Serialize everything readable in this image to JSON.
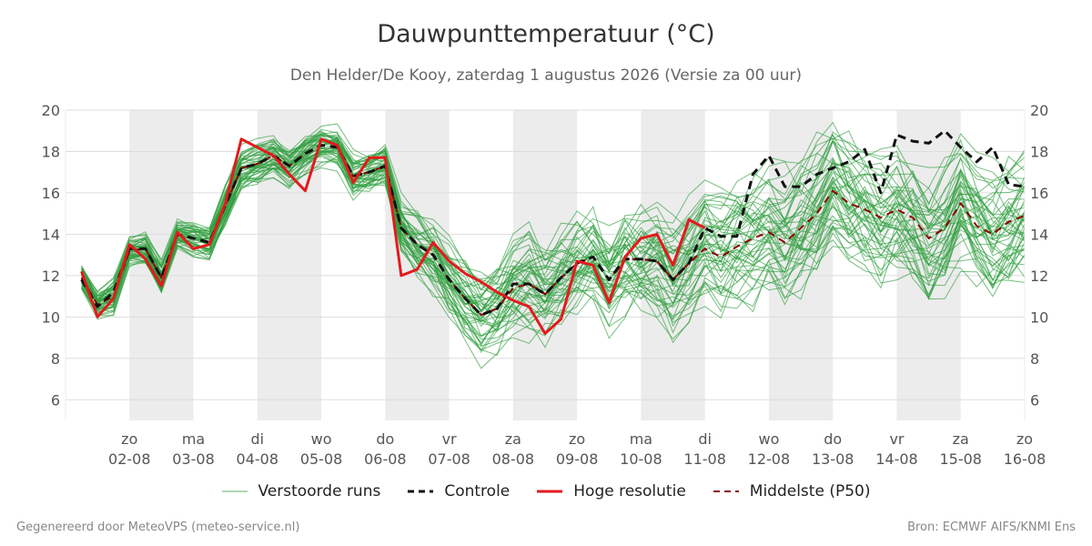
{
  "header": {
    "title": "Dauwpunttemperatuur (°C)",
    "subtitle": "Den Helder/De Kooy, zaterdag  1 augustus 2026 (Versie za 00 uur)"
  },
  "footer": {
    "left": "Gegenereerd door MeteoVPS (meteo-service.nl)",
    "right": "Bron: ECMWF AIFS/KNMI Ens"
  },
  "colors": {
    "ensemble": "#2e9e3e",
    "controle": "#111111",
    "hoge_resolutie": "#e31a1c",
    "middelste": "#8b0000",
    "band": "#ececec",
    "grid": "#dddddd"
  },
  "chart_data": {
    "type": "line",
    "ylim": [
      5,
      20
    ],
    "yticks": [
      6,
      8,
      10,
      12,
      14,
      16,
      18,
      20
    ],
    "xlim": [
      "2026-08-01T00:00",
      "2026-08-16T00:00"
    ],
    "grid": true,
    "legend_position": "bottom",
    "weekend_bands": [
      [
        "2026-08-02",
        "2026-08-03"
      ],
      [
        "2026-08-04",
        "2026-08-05"
      ],
      [
        "2026-08-06",
        "2026-08-07"
      ],
      [
        "2026-08-08",
        "2026-08-09"
      ],
      [
        "2026-08-10",
        "2026-08-11"
      ],
      [
        "2026-08-12",
        "2026-08-13"
      ],
      [
        "2026-08-14",
        "2026-08-15"
      ]
    ],
    "x_ticks": [
      {
        "day": "zo",
        "date": "02-08"
      },
      {
        "day": "ma",
        "date": "03-08"
      },
      {
        "day": "di",
        "date": "04-08"
      },
      {
        "day": "wo",
        "date": "05-08"
      },
      {
        "day": "do",
        "date": "06-08"
      },
      {
        "day": "vr",
        "date": "07-08"
      },
      {
        "day": "za",
        "date": "08-08"
      },
      {
        "day": "zo",
        "date": "09-08"
      },
      {
        "day": "ma",
        "date": "10-08"
      },
      {
        "day": "di",
        "date": "11-08"
      },
      {
        "day": "wo",
        "date": "12-08"
      },
      {
        "day": "do",
        "date": "13-08"
      },
      {
        "day": "vr",
        "date": "14-08"
      },
      {
        "day": "za",
        "date": "15-08"
      },
      {
        "day": "zo",
        "date": "16-08"
      }
    ],
    "series": [
      {
        "name": "Hoge resolutie",
        "style": "solid",
        "x": [
          "2026-08-01T06:00",
          "2026-08-01T12:00",
          "2026-08-01T18:00",
          "2026-08-02T00:00",
          "2026-08-02T06:00",
          "2026-08-02T12:00",
          "2026-08-02T18:00",
          "2026-08-03T00:00",
          "2026-08-03T06:00",
          "2026-08-03T12:00",
          "2026-08-03T18:00",
          "2026-08-04T00:00",
          "2026-08-04T06:00",
          "2026-08-04T12:00",
          "2026-08-04T18:00",
          "2026-08-05T00:00",
          "2026-08-05T06:00",
          "2026-08-05T12:00",
          "2026-08-05T18:00",
          "2026-08-06T00:00",
          "2026-08-06T06:00",
          "2026-08-06T12:00",
          "2026-08-06T18:00",
          "2026-08-07T00:00",
          "2026-08-07T06:00",
          "2026-08-07T12:00",
          "2026-08-07T18:00",
          "2026-08-08T00:00",
          "2026-08-08T06:00",
          "2026-08-08T12:00",
          "2026-08-08T18:00",
          "2026-08-09T00:00",
          "2026-08-09T06:00",
          "2026-08-09T12:00",
          "2026-08-09T18:00",
          "2026-08-10T00:00",
          "2026-08-10T06:00",
          "2026-08-10T12:00",
          "2026-08-10T18:00",
          "2026-08-11T00:00"
        ],
        "values": [
          12.2,
          10.0,
          10.9,
          13.5,
          12.8,
          11.5,
          14.1,
          13.3,
          13.5,
          15.5,
          18.6,
          18.2,
          17.8,
          16.9,
          16.1,
          18.6,
          18.3,
          16.5,
          17.7,
          17.7,
          12.0,
          12.3,
          13.6,
          12.7,
          12.1,
          11.7,
          11.2,
          10.8,
          10.5,
          9.2,
          9.9,
          12.7,
          12.5,
          10.7,
          12.9,
          13.8,
          14.0,
          12.5,
          14.7,
          14.3
        ]
      },
      {
        "name": "Controle",
        "style": "dashed",
        "x": [
          "2026-08-01T06:00",
          "2026-08-01T12:00",
          "2026-08-01T18:00",
          "2026-08-02T00:00",
          "2026-08-02T06:00",
          "2026-08-02T12:00",
          "2026-08-02T18:00",
          "2026-08-03T00:00",
          "2026-08-03T06:00",
          "2026-08-03T12:00",
          "2026-08-03T18:00",
          "2026-08-04T00:00",
          "2026-08-04T06:00",
          "2026-08-04T12:00",
          "2026-08-04T18:00",
          "2026-08-05T00:00",
          "2026-08-05T06:00",
          "2026-08-05T12:00",
          "2026-08-05T18:00",
          "2026-08-06T00:00",
          "2026-08-06T06:00",
          "2026-08-06T12:00",
          "2026-08-06T18:00",
          "2026-08-07T00:00",
          "2026-08-07T06:00",
          "2026-08-07T12:00",
          "2026-08-07T18:00",
          "2026-08-08T00:00",
          "2026-08-08T06:00",
          "2026-08-08T12:00",
          "2026-08-08T18:00",
          "2026-08-09T00:00",
          "2026-08-09T06:00",
          "2026-08-09T12:00",
          "2026-08-09T18:00",
          "2026-08-10T00:00",
          "2026-08-10T06:00",
          "2026-08-10T12:00",
          "2026-08-10T18:00",
          "2026-08-11T00:00",
          "2026-08-11T06:00",
          "2026-08-11T12:00",
          "2026-08-11T18:00",
          "2026-08-12T00:00",
          "2026-08-12T06:00",
          "2026-08-12T12:00",
          "2026-08-12T18:00",
          "2026-08-13T00:00",
          "2026-08-13T06:00",
          "2026-08-13T12:00",
          "2026-08-13T18:00",
          "2026-08-14T00:00",
          "2026-08-14T06:00",
          "2026-08-14T12:00",
          "2026-08-14T18:00",
          "2026-08-15T00:00",
          "2026-08-15T06:00",
          "2026-08-15T12:00",
          "2026-08-15T18:00",
          "2026-08-16T00:00"
        ],
        "values": [
          11.8,
          10.5,
          11.2,
          13.3,
          13.3,
          11.9,
          14.0,
          13.8,
          13.6,
          15.4,
          17.2,
          17.4,
          17.8,
          17.3,
          17.9,
          18.3,
          18.2,
          16.8,
          17.0,
          17.3,
          14.3,
          13.5,
          13.0,
          11.8,
          10.9,
          10.1,
          10.4,
          11.6,
          11.6,
          11.1,
          11.9,
          12.6,
          12.9,
          11.8,
          12.8,
          12.8,
          12.7,
          11.8,
          12.6,
          14.3,
          13.9,
          13.9,
          16.9,
          17.8,
          16.3,
          16.3,
          16.9,
          17.2,
          17.5,
          18.1,
          16.0,
          18.8,
          18.5,
          18.4,
          19.0,
          18.2,
          17.5,
          18.2,
          16.4,
          16.3
        ]
      },
      {
        "name": "Middelste (P50)",
        "style": "dashed",
        "x": [
          "2026-08-01T06:00",
          "2026-08-01T12:00",
          "2026-08-01T18:00",
          "2026-08-02T00:00",
          "2026-08-02T06:00",
          "2026-08-02T12:00",
          "2026-08-02T18:00",
          "2026-08-03T00:00",
          "2026-08-03T06:00",
          "2026-08-03T12:00",
          "2026-08-03T18:00",
          "2026-08-04T00:00",
          "2026-08-04T06:00",
          "2026-08-04T12:00",
          "2026-08-04T18:00",
          "2026-08-05T00:00",
          "2026-08-05T06:00",
          "2026-08-05T12:00",
          "2026-08-05T18:00",
          "2026-08-06T00:00",
          "2026-08-06T06:00",
          "2026-08-06T12:00",
          "2026-08-06T18:00",
          "2026-08-07T00:00",
          "2026-08-07T06:00",
          "2026-08-07T12:00",
          "2026-08-07T18:00",
          "2026-08-08T00:00",
          "2026-08-08T06:00",
          "2026-08-08T12:00",
          "2026-08-08T18:00",
          "2026-08-09T00:00",
          "2026-08-09T06:00",
          "2026-08-09T12:00",
          "2026-08-09T18:00",
          "2026-08-10T00:00",
          "2026-08-10T06:00",
          "2026-08-10T12:00",
          "2026-08-10T18:00",
          "2026-08-11T00:00",
          "2026-08-11T06:00",
          "2026-08-11T12:00",
          "2026-08-11T18:00",
          "2026-08-12T00:00",
          "2026-08-12T06:00",
          "2026-08-12T12:00",
          "2026-08-12T18:00",
          "2026-08-13T00:00",
          "2026-08-13T06:00",
          "2026-08-13T12:00",
          "2026-08-13T18:00",
          "2026-08-14T00:00",
          "2026-08-14T06:00",
          "2026-08-14T12:00",
          "2026-08-14T18:00",
          "2026-08-15T00:00",
          "2026-08-15T06:00",
          "2026-08-15T12:00",
          "2026-08-15T18:00",
          "2026-08-16T00:00"
        ],
        "values": [
          11.9,
          10.6,
          11.0,
          13.2,
          13.3,
          11.9,
          14.0,
          13.8,
          13.6,
          15.4,
          17.2,
          17.4,
          17.8,
          17.3,
          17.9,
          18.3,
          18.2,
          16.8,
          17.0,
          17.3,
          14.3,
          13.5,
          13.0,
          11.8,
          10.9,
          10.1,
          10.4,
          11.4,
          11.6,
          11.1,
          11.9,
          12.6,
          12.9,
          11.8,
          12.8,
          12.8,
          12.7,
          11.8,
          12.6,
          13.3,
          12.9,
          13.4,
          13.8,
          14.1,
          13.6,
          14.3,
          15.0,
          16.1,
          15.5,
          15.2,
          14.8,
          15.2,
          14.8,
          13.8,
          14.3,
          15.5,
          14.4,
          14.0,
          14.6,
          14.9
        ]
      }
    ],
    "ensemble": {
      "name": "Verstoorde runs",
      "members": 50,
      "x": [
        "2026-08-01T06:00",
        "2026-08-01T12:00",
        "2026-08-01T18:00",
        "2026-08-02T00:00",
        "2026-08-02T06:00",
        "2026-08-02T12:00",
        "2026-08-02T18:00",
        "2026-08-03T00:00",
        "2026-08-03T06:00",
        "2026-08-03T12:00",
        "2026-08-03T18:00",
        "2026-08-04T00:00",
        "2026-08-04T06:00",
        "2026-08-04T12:00",
        "2026-08-04T18:00",
        "2026-08-05T00:00",
        "2026-08-05T06:00",
        "2026-08-05T12:00",
        "2026-08-05T18:00",
        "2026-08-06T00:00",
        "2026-08-06T06:00",
        "2026-08-06T12:00",
        "2026-08-06T18:00",
        "2026-08-07T00:00",
        "2026-08-07T06:00",
        "2026-08-07T12:00",
        "2026-08-07T18:00",
        "2026-08-08T00:00",
        "2026-08-08T06:00",
        "2026-08-08T12:00",
        "2026-08-08T18:00",
        "2026-08-09T00:00",
        "2026-08-09T06:00",
        "2026-08-09T12:00",
        "2026-08-09T18:00",
        "2026-08-10T00:00",
        "2026-08-10T06:00",
        "2026-08-10T12:00",
        "2026-08-10T18:00",
        "2026-08-11T00:00",
        "2026-08-11T06:00",
        "2026-08-11T12:00",
        "2026-08-11T18:00",
        "2026-08-12T00:00",
        "2026-08-12T06:00",
        "2026-08-12T12:00",
        "2026-08-12T18:00",
        "2026-08-13T00:00",
        "2026-08-13T06:00",
        "2026-08-13T12:00",
        "2026-08-13T18:00",
        "2026-08-14T00:00",
        "2026-08-14T06:00",
        "2026-08-14T12:00",
        "2026-08-14T18:00",
        "2026-08-15T00:00",
        "2026-08-15T06:00",
        "2026-08-15T12:00",
        "2026-08-15T18:00",
        "2026-08-16T00:00"
      ],
      "median": [
        11.9,
        10.6,
        11.0,
        13.2,
        13.3,
        11.9,
        14.0,
        13.8,
        13.6,
        15.4,
        17.2,
        17.4,
        17.8,
        17.3,
        17.9,
        18.3,
        18.2,
        16.8,
        17.0,
        17.3,
        14.3,
        13.5,
        13.0,
        11.8,
        10.9,
        10.1,
        10.4,
        11.4,
        11.6,
        11.1,
        11.9,
        12.6,
        12.9,
        11.8,
        12.8,
        12.8,
        12.7,
        11.8,
        12.6,
        13.3,
        12.9,
        13.4,
        13.8,
        14.1,
        13.6,
        14.3,
        15.0,
        16.1,
        15.5,
        15.2,
        14.8,
        15.2,
        14.8,
        13.8,
        14.3,
        15.5,
        14.4,
        14.0,
        14.6,
        14.9
      ],
      "spread": [
        0.7,
        0.7,
        0.9,
        0.7,
        0.8,
        0.8,
        0.7,
        0.8,
        0.8,
        1.0,
        1.0,
        1.0,
        1.0,
        1.0,
        1.0,
        0.9,
        0.9,
        1.0,
        1.0,
        1.1,
        1.6,
        1.8,
        2.0,
        2.0,
        2.1,
        2.2,
        2.3,
        2.4,
        2.4,
        2.5,
        2.5,
        2.6,
        2.6,
        2.7,
        2.7,
        2.8,
        2.8,
        2.9,
        2.9,
        3.0,
        3.0,
        3.0,
        3.1,
        3.1,
        3.1,
        3.2,
        3.2,
        3.2,
        3.2,
        3.2,
        3.3,
        3.3,
        3.3,
        3.3,
        3.3,
        3.3,
        3.3,
        3.3,
        3.3,
        3.3
      ]
    }
  },
  "legend": [
    {
      "label": "Verstoorde runs",
      "icon": "thin-green-line-icon"
    },
    {
      "label": "Controle",
      "icon": "black-dashed-line-icon"
    },
    {
      "label": "Hoge resolutie",
      "icon": "red-line-icon"
    },
    {
      "label": "Middelste (P50)",
      "icon": "darkred-dashed-line-icon"
    }
  ]
}
